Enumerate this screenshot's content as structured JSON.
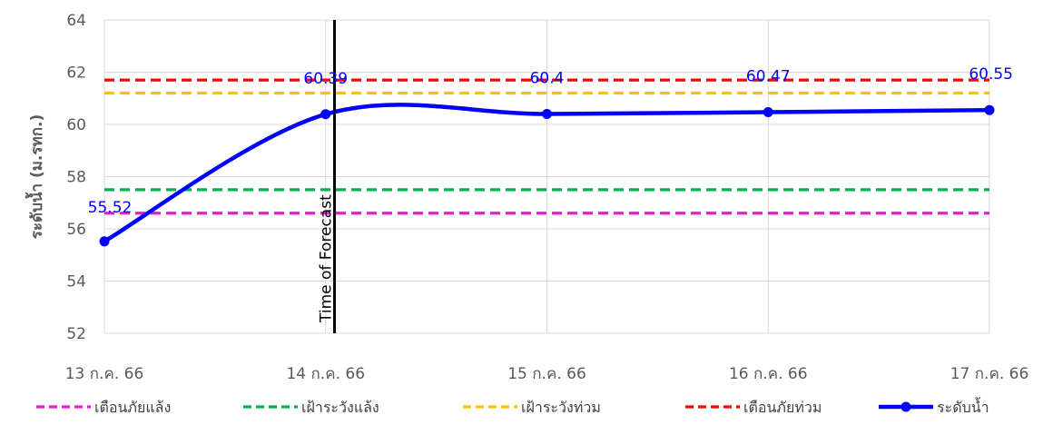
{
  "chart_data": {
    "type": "line",
    "title": "",
    "xlabel": "",
    "ylabel": "ระดับน้ำ (ม.รทก.)",
    "ylim": [
      52,
      64
    ],
    "yticks": [
      52,
      54,
      56,
      58,
      60,
      62,
      64
    ],
    "grid": true,
    "categories": [
      "13 ก.ค. 66",
      "14 ก.ค. 66",
      "15 ก.ค. 66",
      "16 ก.ค. 66",
      "17 ก.ค. 66"
    ],
    "series": [
      {
        "name": "ระดับน้ำ",
        "values": [
          55.52,
          60.39,
          60.4,
          60.47,
          60.55
        ],
        "labels": [
          "55.52",
          "60.39",
          "60.4",
          "60.47",
          "60.55"
        ],
        "color": "#0000ff",
        "style": "solid-smooth-markers"
      }
    ],
    "threshold_lines": [
      {
        "name": "เตือนภัยแล้ง",
        "value": 56.6,
        "color": "#e61fca",
        "style": "dashed"
      },
      {
        "name": "เฝ้าระวังแล้ง",
        "value": 57.5,
        "color": "#00b050",
        "style": "dashed"
      },
      {
        "name": "เฝ้าระวังท่วม",
        "value": 61.2,
        "color": "#ffc000",
        "style": "dashed"
      },
      {
        "name": "เตือนภัยท่วม",
        "value": 61.7,
        "color": "#ff0000",
        "style": "dashed"
      }
    ],
    "annotations": [
      {
        "text": "Time of Forecast",
        "x_category_position": 1.04,
        "color": "#000000"
      }
    ],
    "legend": {
      "placement": "bottom",
      "entries": [
        "เตือนภัยแล้ง",
        "เฝ้าระวังแล้ง",
        "เฝ้าระวังท่วม",
        "เตือนภัยท่วม",
        "ระดับน้ำ"
      ]
    }
  }
}
